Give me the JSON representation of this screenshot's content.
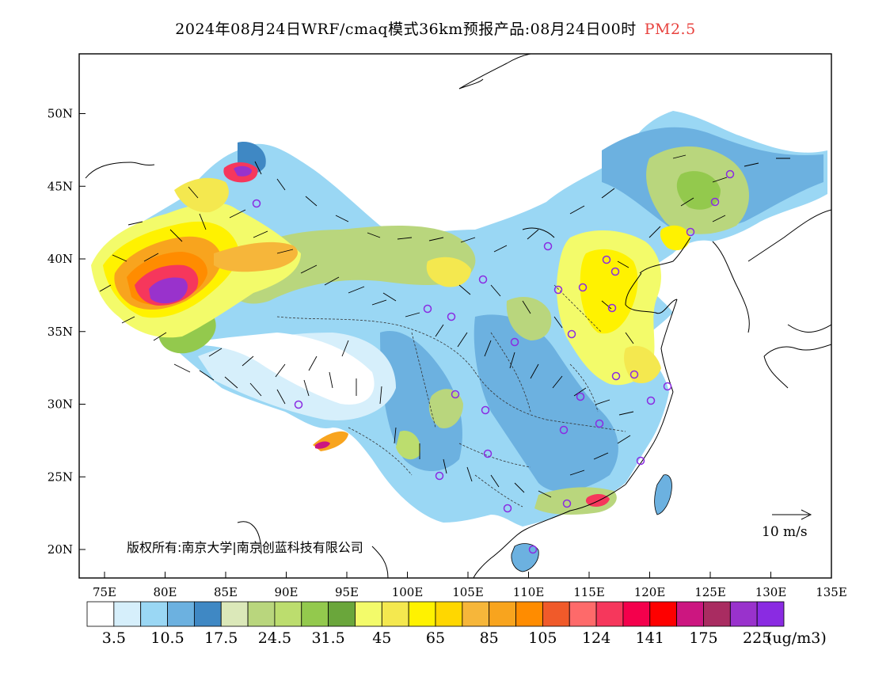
{
  "title": {
    "main": "2024年08月24日WRF/cmaq模式36km预报产品:08月24日00时",
    "pollutant": "PM2.5"
  },
  "axes": {
    "lon_labels": [
      "75E",
      "80E",
      "85E",
      "90E",
      "95E",
      "100E",
      "105E",
      "110E",
      "115E",
      "120E",
      "125E",
      "130E",
      "135E"
    ],
    "lat_labels": [
      "20N",
      "25N",
      "30N",
      "35N",
      "40N",
      "45N",
      "50N"
    ]
  },
  "copyright": "版权所有:南京大学|南京创蓝科技有限公司",
  "wind_reference": {
    "label": "10 m/s"
  },
  "legend": {
    "colors": [
      "#ffffff",
      "#d6effb",
      "#9ad7f4",
      "#6cb1e0",
      "#3f88c4",
      "#dbe8b9",
      "#b9d67d",
      "#bcdd6e",
      "#93c94d",
      "#6aa63b",
      "#f3fb6a",
      "#f4e84f",
      "#fff200",
      "#ffd700",
      "#f6b63a",
      "#f8a41e",
      "#ff8c00",
      "#f05a2a",
      "#fe6a6a",
      "#f6375c",
      "#f4004c",
      "#fe0000",
      "#cc1680",
      "#a92c61",
      "#9932cc",
      "#8a2be2"
    ],
    "labels": [
      "3.5",
      "10.5",
      "17.5",
      "24.5",
      "31.5",
      "45",
      "65",
      "85",
      "105",
      "124",
      "141",
      "175",
      "225"
    ],
    "unit": "(ug/m3)"
  }
}
